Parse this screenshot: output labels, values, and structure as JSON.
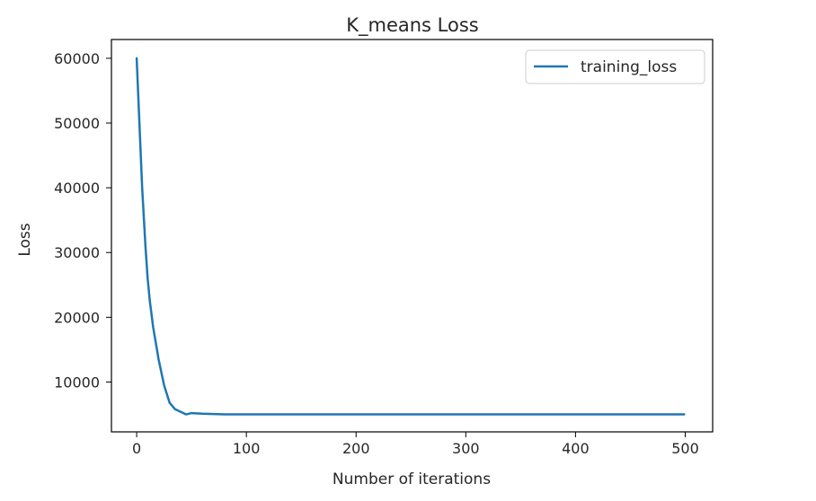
{
  "chart_data": {
    "type": "line",
    "title": "K_means Loss",
    "xlabel": "Number of iterations",
    "ylabel": "Loss",
    "xlim": [
      -23,
      525
    ],
    "ylim": [
      2300,
      62900
    ],
    "xticks": [
      0,
      100,
      200,
      300,
      400,
      500
    ],
    "xtick_labels": [
      "0",
      "100",
      "200",
      "300",
      "400",
      "500"
    ],
    "yticks": [
      10000,
      20000,
      30000,
      40000,
      50000,
      60000
    ],
    "ytick_labels": [
      "10000",
      "20000",
      "30000",
      "40000",
      "50000",
      "60000"
    ],
    "grid": false,
    "legend_position": "top-right",
    "series": [
      {
        "name": "training_loss",
        "color": "#1f77b4",
        "x": [
          0,
          2,
          5,
          8,
          10,
          12,
          15,
          18,
          20,
          25,
          30,
          35,
          40,
          45,
          50,
          60,
          80,
          100,
          150,
          200,
          300,
          400,
          499
        ],
        "y": [
          60000,
          52000,
          40000,
          31000,
          26000,
          22500,
          18500,
          15500,
          13500,
          9500,
          6800,
          5800,
          5400,
          5000,
          5200,
          5100,
          5000,
          5000,
          5000,
          5000,
          5000,
          5000,
          5000
        ]
      }
    ]
  }
}
